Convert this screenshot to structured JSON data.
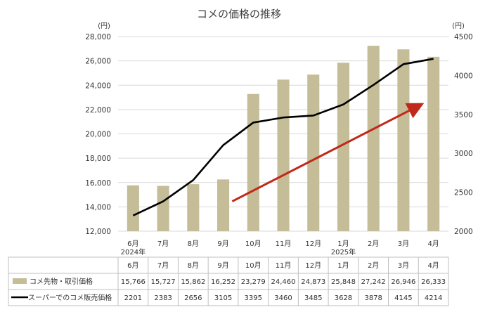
{
  "chart_data": {
    "type": "bar",
    "title": "コメの価格の推移",
    "categories": [
      "6月",
      "7月",
      "8月",
      "9月",
      "10月",
      "11月",
      "12月",
      "1月",
      "2月",
      "3月",
      "4月"
    ],
    "year_labels": [
      {
        "index": 0,
        "label": "2024年"
      },
      {
        "index": 7,
        "label": "2025年"
      }
    ],
    "y_left": {
      "unit": "(円)",
      "min": 12000,
      "max": 28000,
      "step": 2000,
      "ticks": [
        "12,000",
        "14,000",
        "16,000",
        "18,000",
        "20,000",
        "22,000",
        "24,000",
        "26,000",
        "28,000"
      ]
    },
    "y_right": {
      "unit": "(円)",
      "min": 2000,
      "max": 4500,
      "step": 500,
      "ticks": [
        "2000",
        "2500",
        "3000",
        "3500",
        "4000",
        "4500"
      ]
    },
    "series": [
      {
        "name": "コメ先物・取引価格",
        "type": "bar",
        "axis": "left",
        "color": "#c4bd97",
        "values": [
          15766,
          15727,
          15862,
          16252,
          23279,
          24460,
          24873,
          25848,
          27242,
          26946,
          26333
        ],
        "labels": [
          "15,766",
          "15,727",
          "15,862",
          "16,252",
          "23,279",
          "24,460",
          "24,873",
          "25,848",
          "27,242",
          "26,946",
          "26,333"
        ]
      },
      {
        "name": "スーパーでのコメ販売価格",
        "type": "line",
        "axis": "right",
        "color": "#000000",
        "values": [
          2201,
          2383,
          2656,
          3105,
          3395,
          3460,
          3485,
          3628,
          3878,
          4145,
          4214
        ],
        "labels": [
          "2201",
          "2383",
          "2656",
          "3105",
          "3395",
          "3460",
          "3485",
          "3628",
          "3878",
          "4145",
          "4214"
        ]
      }
    ],
    "annotation_arrow": {
      "color": "#c0281a",
      "from": {
        "x_index": 3.3,
        "y": 14450
      },
      "to": {
        "x_index": 9.5,
        "y": 22300
      }
    },
    "grid": true,
    "legend": "data-table"
  }
}
